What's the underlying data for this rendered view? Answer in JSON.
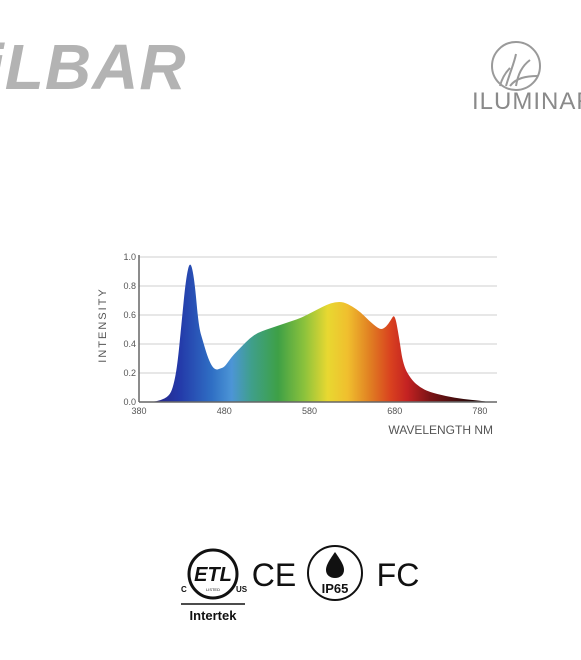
{
  "header": {
    "brand_title": "iLBAR",
    "logo_text": "ILUMINAR"
  },
  "chart_data": {
    "type": "area",
    "xlabel": "WAVELENGTH NM",
    "ylabel": "INTENSITY",
    "xlim": [
      380,
      800
    ],
    "ylim": [
      0,
      1.0
    ],
    "xticks": [
      "380",
      "480",
      "580",
      "680",
      "780"
    ],
    "yticks": [
      "0.0",
      "0.2",
      "0.4",
      "0.6",
      "0.8",
      "1.0"
    ],
    "grid": true,
    "x": [
      380,
      395,
      405,
      415,
      420,
      425,
      430,
      435,
      440,
      445,
      450,
      455,
      460,
      465,
      470,
      475,
      480,
      485,
      490,
      500,
      510,
      520,
      530,
      540,
      550,
      560,
      570,
      580,
      590,
      600,
      610,
      620,
      630,
      640,
      650,
      660,
      665,
      670,
      675,
      680,
      685,
      690,
      700,
      710,
      720,
      740,
      760,
      780,
      790
    ],
    "y": [
      0.0,
      0.0,
      0.01,
      0.04,
      0.1,
      0.25,
      0.55,
      0.85,
      0.98,
      0.85,
      0.52,
      0.42,
      0.32,
      0.25,
      0.22,
      0.23,
      0.24,
      0.28,
      0.32,
      0.38,
      0.44,
      0.48,
      0.5,
      0.52,
      0.54,
      0.56,
      0.58,
      0.61,
      0.64,
      0.67,
      0.69,
      0.69,
      0.66,
      0.62,
      0.56,
      0.51,
      0.5,
      0.52,
      0.56,
      0.61,
      0.45,
      0.25,
      0.15,
      0.1,
      0.07,
      0.04,
      0.02,
      0.01,
      0.0
    ]
  },
  "certifications": {
    "etl_c": "C",
    "etl_letters": "ETL",
    "etl_listed": "LISTED",
    "etl_us": "US",
    "intertek": "Intertek",
    "ce": "CE",
    "ip_rating": "IP65",
    "fcc": "FC"
  }
}
